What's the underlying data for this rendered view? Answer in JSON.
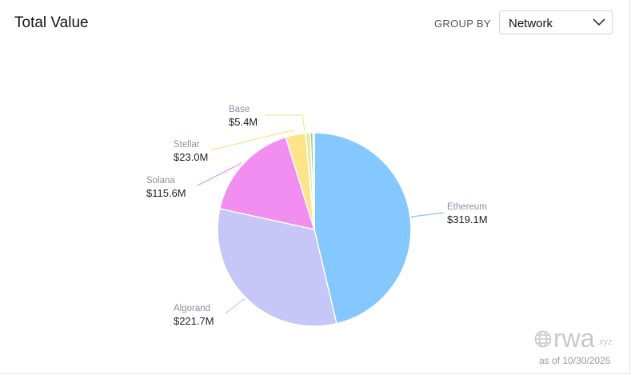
{
  "header": {
    "title": "Total Value",
    "group_by_label": "GROUP BY",
    "group_by_value": "Network"
  },
  "footer": {
    "logo_text": "rwa",
    "logo_suffix": ".xyz",
    "as_of": "as of 10/30/2025"
  },
  "chart_data": {
    "type": "pie",
    "unit": "$M",
    "slices": [
      {
        "name": "Ethereum",
        "value": 319.1,
        "label": "$319.1M",
        "color": "#85c8ff"
      },
      {
        "name": "Algorand",
        "value": 221.7,
        "label": "$221.7M",
        "color": "#c6c6f8"
      },
      {
        "name": "Solana",
        "value": 115.6,
        "label": "$115.6M",
        "color": "#f28ef2"
      },
      {
        "name": "Stellar",
        "value": 23.0,
        "label": "$23.0M",
        "color": "#fde38a"
      },
      {
        "name": "Base",
        "value": 5.4,
        "label": "$5.4M",
        "color": "#e6eb9c"
      },
      {
        "name": "",
        "value": 3.0,
        "label": "",
        "color": "#7fcf9a"
      },
      {
        "name": "",
        "value": 1.5,
        "label": "",
        "color": "#a9d8f5"
      }
    ]
  }
}
